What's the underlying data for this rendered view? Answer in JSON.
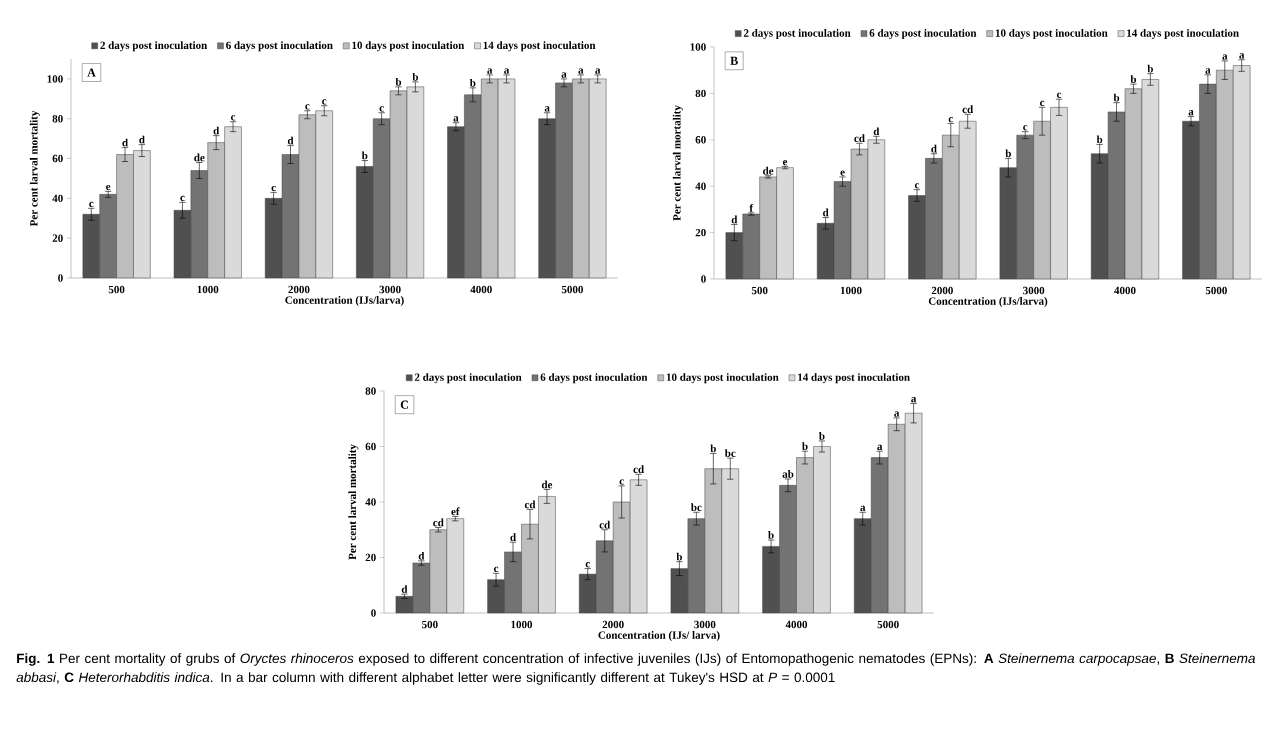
{
  "chart_data": [
    {
      "type": "bar",
      "title": "A",
      "xlabel": "Concentration  (IJs/larva)",
      "ylabel": "Per cent larval  mortality",
      "categories": [
        "500",
        "1000",
        "2000",
        "3000",
        "4000",
        "5000"
      ],
      "ylim": [
        0,
        110
      ],
      "yticks": [
        0,
        20,
        40,
        60,
        80,
        100
      ],
      "legend": "top",
      "series": [
        {
          "name": "2 days post inoculation",
          "color": "#505050",
          "values": [
            32,
            34,
            40,
            56,
            76,
            80
          ],
          "errors": [
            3,
            4,
            3,
            3,
            2,
            3
          ],
          "value_labels": [
            "c",
            "c",
            "c",
            "b",
            "a",
            "a"
          ]
        },
        {
          "name": "6 days post inoculation",
          "color": "#737373",
          "values": [
            42,
            54,
            62,
            80,
            92,
            98
          ],
          "errors": [
            1.5,
            4,
            4.5,
            3,
            3.5,
            2
          ],
          "value_labels": [
            "e",
            "de",
            "d",
            "c",
            "b",
            "a"
          ]
        },
        {
          "name": "10 days post inoculation",
          "color": "#bdbdbd",
          "values": [
            62,
            68,
            82,
            94,
            100,
            100
          ],
          "errors": [
            3.5,
            3.5,
            2,
            2,
            2,
            2
          ],
          "value_labels": [
            "d",
            "d",
            "c",
            "b",
            "a",
            "a"
          ]
        },
        {
          "name": "14 days post inoculation",
          "color": "#dadada",
          "values": [
            64,
            76,
            84,
            96,
            100,
            100
          ],
          "errors": [
            3,
            2.5,
            2.5,
            2.5,
            2,
            2
          ],
          "value_labels": [
            "d",
            "c",
            "c",
            "b",
            "a",
            "a"
          ]
        }
      ]
    },
    {
      "type": "bar",
      "title": "B",
      "xlabel": "Concentration  (IJs/larva)",
      "ylabel": "Per cent larval  mortality",
      "categories": [
        "500",
        "1000",
        "2000",
        "3000",
        "4000",
        "5000"
      ],
      "ylim": [
        0,
        100
      ],
      "yticks": [
        0,
        20,
        40,
        60,
        80,
        100
      ],
      "legend": "top",
      "series": [
        {
          "name": "2 days post inoculation",
          "color": "#505050",
          "values": [
            20,
            24,
            36,
            48,
            54,
            68
          ],
          "errors": [
            3.5,
            2.5,
            2.5,
            4,
            4,
            2
          ],
          "value_labels": [
            "d",
            "d",
            "c",
            "b",
            "b",
            "a"
          ]
        },
        {
          "name": "6 days post inoculation",
          "color": "#737373",
          "values": [
            28,
            42,
            52,
            62,
            72,
            84
          ],
          "errors": [
            0.5,
            2,
            2,
            1.5,
            4,
            4
          ],
          "value_labels": [
            "f",
            "e",
            "d",
            "c",
            "b",
            "a"
          ]
        },
        {
          "name": "10 days post inoculation",
          "color": "#bdbdbd",
          "values": [
            44,
            56,
            62,
            68,
            82,
            90
          ],
          "errors": [
            0.5,
            2.5,
            5,
            6,
            2,
            4
          ],
          "value_labels": [
            "de",
            "cd",
            "c",
            "c",
            "b",
            "a"
          ]
        },
        {
          "name": "14 days post inoculation",
          "color": "#dadada",
          "values": [
            48,
            60,
            68,
            74,
            86,
            92
          ],
          "errors": [
            0.5,
            1.5,
            3,
            3.5,
            2.5,
            2.5
          ],
          "value_labels": [
            "e",
            "d",
            "cd",
            "c",
            "b",
            "a"
          ]
        }
      ]
    },
    {
      "type": "bar",
      "title": "C",
      "xlabel": "Concentration  (IJs/ larva)",
      "ylabel": "Per cent larval  mortality",
      "categories": [
        "500",
        "1000",
        "2000",
        "3000",
        "4000",
        "5000"
      ],
      "ylim": [
        0,
        80
      ],
      "yticks": [
        0,
        20,
        40,
        60,
        80
      ],
      "legend": "top",
      "annotations": [
        "**Fig. 1** Per cent mortality of grubs of *Oryctes rhinoceros* exposed to different concentration of infective juveniles (IJs) of Entomopathogenic nematodes (EPNs): **A** *Steinernema carpocapsae*, **B** *Steinernema abbasi*, **C** *Heterorhabditis indica*. In a bar column with different alphabet letter were significantly different at Tukey's HSD at *P* = 0.0001"
      ],
      "series": [
        {
          "name": "2 days post inoculation",
          "color": "#505050",
          "values": [
            6,
            12,
            14,
            16,
            24,
            34
          ],
          "errors": [
            0.8,
            2.3,
            2,
            2.5,
            2.3,
            2.3
          ],
          "value_labels": [
            "d",
            "c",
            "c",
            "b",
            "b",
            "a"
          ]
        },
        {
          "name": "6 days post inoculation",
          "color": "#737373",
          "values": [
            18,
            22,
            26,
            34,
            46,
            56
          ],
          "errors": [
            0.8,
            3.5,
            4,
            2.3,
            2.3,
            2.3
          ],
          "value_labels": [
            "d",
            "d",
            "cd",
            "bc",
            "ab",
            "a"
          ]
        },
        {
          "name": "10 days post inoculation",
          "color": "#bdbdbd",
          "values": [
            30,
            32,
            40,
            52,
            56,
            68
          ],
          "errors": [
            0.8,
            5.3,
            5.8,
            5.5,
            2.3,
            2.3
          ],
          "value_labels": [
            "cd",
            "cd",
            "c",
            "b",
            "b",
            "a"
          ]
        },
        {
          "name": "14 days post inoculation",
          "color": "#dadada",
          "values": [
            34,
            42,
            48,
            52,
            60,
            72
          ],
          "errors": [
            0.8,
            2.5,
            2,
            3.8,
            2,
            3.5
          ],
          "value_labels": [
            "ef",
            "de",
            "cd",
            "bc",
            "b",
            "a"
          ]
        }
      ]
    }
  ]
}
